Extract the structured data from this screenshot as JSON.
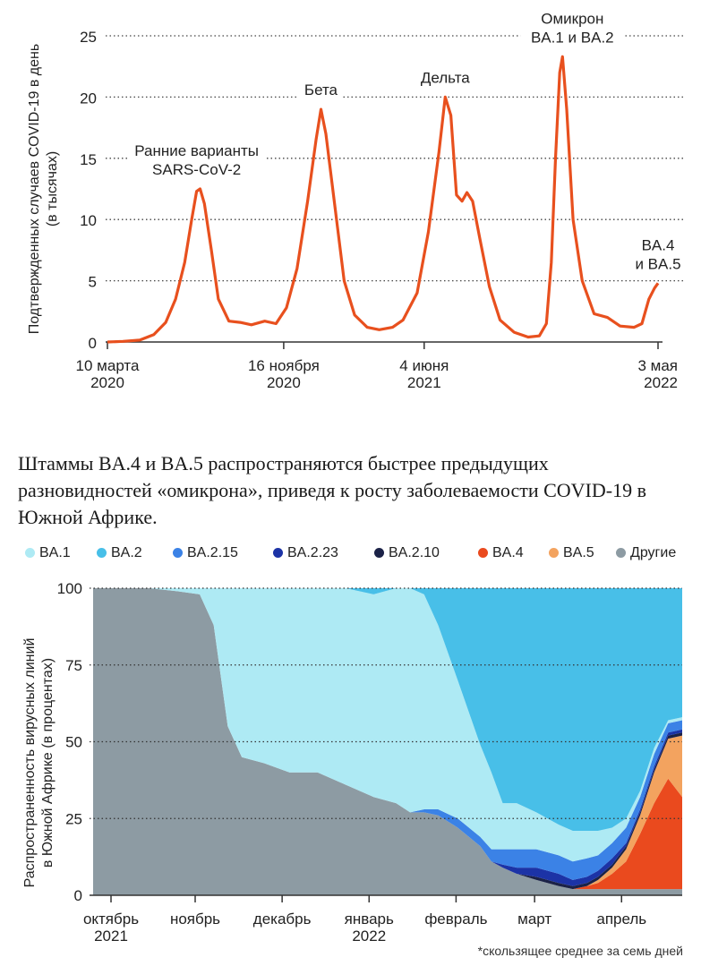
{
  "caption": "Штаммы BA.4 и BA.5 распространяются быстрее предыдущих разновидностей «омикрона», приведя к росту заболеваемости COVID-19 в Южной Африке.",
  "footnote": "*скользящее среднее за семь дней",
  "chart_data": [
    {
      "type": "line",
      "ylabel": "Подтвержденных случаев COVID-19 в день",
      "ylabel2": "(в тысячах)",
      "ylim": [
        0,
        25
      ],
      "yticks": [
        0,
        5,
        10,
        15,
        20,
        25
      ],
      "grid": "dotted-horizontal",
      "color": "#e8501e",
      "xticks": [
        {
          "x": "2020-03-10",
          "line1": "10 марта",
          "line2": "2020"
        },
        {
          "x": "2020-11-16",
          "line1": "16 ноября",
          "line2": "2020"
        },
        {
          "x": "2021-06-04",
          "line1": "4 июня",
          "line2": "2021"
        },
        {
          "x": "2022-05-03",
          "line1": "3 мая",
          "line2": "2022"
        }
      ],
      "annotations": [
        {
          "x": "2020-07-15",
          "y": 12.5,
          "lines": [
            "Ранние варианты",
            "SARS-CoV-2"
          ]
        },
        {
          "x": "2021-01-08",
          "y": 19.0,
          "lines": [
            "Бета"
          ]
        },
        {
          "x": "2021-07-04",
          "y": 20.0,
          "lines": [
            "Дельта"
          ]
        },
        {
          "x": "2022-01-01",
          "y": 23.3,
          "lines": [
            "Омикрон",
            "BA.1 и BA.2"
          ]
        },
        {
          "x": "2022-05-03",
          "y": 4.8,
          "lines": [
            "BA.4",
            "и BA.5"
          ]
        }
      ],
      "series": [
        {
          "values": [
            [
              "2020-03-10",
              0.0
            ],
            [
              "2020-04-01",
              0.05
            ],
            [
              "2020-04-25",
              0.15
            ],
            [
              "2020-05-15",
              0.6
            ],
            [
              "2020-06-01",
              1.6
            ],
            [
              "2020-06-15",
              3.5
            ],
            [
              "2020-06-28",
              6.5
            ],
            [
              "2020-07-08",
              10.0
            ],
            [
              "2020-07-15",
              12.3
            ],
            [
              "2020-07-20",
              12.5
            ],
            [
              "2020-07-26",
              11.3
            ],
            [
              "2020-08-05",
              7.5
            ],
            [
              "2020-08-15",
              3.5
            ],
            [
              "2020-08-30",
              1.7
            ],
            [
              "2020-09-15",
              1.6
            ],
            [
              "2020-10-01",
              1.4
            ],
            [
              "2020-10-20",
              1.7
            ],
            [
              "2020-11-05",
              1.5
            ],
            [
              "2020-11-20",
              2.8
            ],
            [
              "2020-12-05",
              6.0
            ],
            [
              "2020-12-20",
              11.5
            ],
            [
              "2021-01-01",
              16.5
            ],
            [
              "2021-01-08",
              19.0
            ],
            [
              "2021-01-15",
              17.0
            ],
            [
              "2021-01-28",
              11.0
            ],
            [
              "2021-02-10",
              5.0
            ],
            [
              "2021-02-25",
              2.2
            ],
            [
              "2021-03-15",
              1.2
            ],
            [
              "2021-04-01",
              1.0
            ],
            [
              "2021-04-20",
              1.2
            ],
            [
              "2021-05-05",
              1.8
            ],
            [
              "2021-05-25",
              4.0
            ],
            [
              "2021-06-10",
              9.0
            ],
            [
              "2021-06-25",
              15.5
            ],
            [
              "2021-07-04",
              20.0
            ],
            [
              "2021-07-12",
              18.5
            ],
            [
              "2021-07-20",
              12.0
            ],
            [
              "2021-07-28",
              11.5
            ],
            [
              "2021-08-04",
              12.2
            ],
            [
              "2021-08-12",
              11.5
            ],
            [
              "2021-08-22",
              8.5
            ],
            [
              "2021-09-05",
              4.5
            ],
            [
              "2021-09-20",
              1.8
            ],
            [
              "2021-10-10",
              0.8
            ],
            [
              "2021-10-30",
              0.4
            ],
            [
              "2021-11-15",
              0.5
            ],
            [
              "2021-11-25",
              1.5
            ],
            [
              "2021-12-02",
              6.5
            ],
            [
              "2021-12-08",
              15.0
            ],
            [
              "2021-12-14",
              22.0
            ],
            [
              "2021-12-18",
              23.3
            ],
            [
              "2021-12-24",
              19.0
            ],
            [
              "2022-01-02",
              10.0
            ],
            [
              "2022-01-15",
              5.0
            ],
            [
              "2022-02-01",
              2.3
            ],
            [
              "2022-02-20",
              2.0
            ],
            [
              "2022-03-10",
              1.3
            ],
            [
              "2022-03-30",
              1.2
            ],
            [
              "2022-04-10",
              1.5
            ],
            [
              "2022-04-20",
              3.5
            ],
            [
              "2022-04-28",
              4.4
            ],
            [
              "2022-05-03",
              4.8
            ]
          ]
        }
      ]
    },
    {
      "type": "area",
      "stacked": true,
      "ylabel": "Распространенность вирусных линий",
      "ylabel2": "в Южной Африке (в процентах)",
      "ylim": [
        0,
        100
      ],
      "yticks": [
        0,
        25,
        50,
        75,
        100
      ],
      "grid": "dotted-horizontal",
      "xticks": [
        {
          "x": 0,
          "line1": "октябрь",
          "line2": "2021"
        },
        {
          "x": 30,
          "line1": "ноябрь",
          "line2": ""
        },
        {
          "x": 61,
          "line1": "декабрь",
          "line2": ""
        },
        {
          "x": 92,
          "line1": "январь",
          "line2": "2022"
        },
        {
          "x": 123,
          "line1": "февраль",
          "line2": ""
        },
        {
          "x": 151,
          "line1": "март",
          "line2": ""
        },
        {
          "x": 182,
          "line1": "апрель",
          "line2": ""
        }
      ],
      "x": [
        0,
        10,
        20,
        30,
        38,
        43,
        48,
        53,
        61,
        70,
        80,
        90,
        100,
        108,
        113,
        118,
        123,
        130,
        138,
        142,
        146,
        151,
        158,
        166,
        171,
        176,
        180,
        185,
        190,
        195,
        200,
        205,
        210
      ],
      "series": [
        {
          "name": "Другие",
          "color": "#8d9ba3",
          "values": [
            100,
            100,
            100,
            99,
            98,
            88,
            55,
            45,
            43,
            40,
            40,
            36,
            32,
            30,
            27,
            27,
            26,
            22,
            16,
            11,
            9,
            7,
            5,
            3,
            2,
            2,
            2,
            2,
            2,
            2,
            2,
            2,
            2
          ]
        },
        {
          "name": "BA.4",
          "color": "#ea4a1e",
          "values": [
            0,
            0,
            0,
            0,
            0,
            0,
            0,
            0,
            0,
            0,
            0,
            0,
            0,
            0,
            0,
            0,
            0,
            0,
            0,
            0,
            0,
            0,
            0,
            0,
            0,
            1,
            2,
            5,
            9,
            18,
            28,
            36,
            30
          ]
        },
        {
          "name": "BA.5",
          "color": "#f3a35f",
          "values": [
            0,
            0,
            0,
            0,
            0,
            0,
            0,
            0,
            0,
            0,
            0,
            0,
            0,
            0,
            0,
            0,
            0,
            0,
            0,
            0,
            0,
            0,
            0,
            0,
            0,
            0,
            1,
            2,
            4,
            6,
            10,
            13,
            20
          ]
        },
        {
          "name": "BA.2.10",
          "color": "#1b2247",
          "values": [
            0,
            0,
            0,
            0,
            0,
            0,
            0,
            0,
            0,
            0,
            0,
            0,
            0,
            0,
            0,
            0,
            0,
            0,
            0,
            0,
            0,
            0,
            1,
            1,
            1,
            1,
            1,
            1,
            1,
            1,
            1,
            1,
            1
          ]
        },
        {
          "name": "BA.2.23",
          "color": "#1c33a6",
          "values": [
            0,
            0,
            0,
            0,
            0,
            0,
            0,
            0,
            0,
            0,
            0,
            0,
            0,
            0,
            0,
            0,
            0,
            0,
            0,
            0,
            1,
            2,
            3,
            3,
            2,
            2,
            2,
            2,
            1,
            1,
            1,
            1,
            1
          ]
        },
        {
          "name": "BA.2.15",
          "color": "#3b82e6",
          "values": [
            0,
            0,
            0,
            0,
            0,
            0,
            0,
            0,
            0,
            0,
            0,
            0,
            0,
            0,
            0,
            1,
            2,
            3,
            3,
            4,
            5,
            6,
            6,
            6,
            6,
            6,
            5,
            5,
            5,
            4,
            4,
            3,
            3
          ]
        },
        {
          "name": "BA.1",
          "color": "#aeeaf4",
          "values": [
            0,
            0,
            0,
            1,
            2,
            12,
            45,
            55,
            57,
            60,
            60,
            64,
            66,
            70,
            73,
            70,
            60,
            45,
            30,
            25,
            15,
            15,
            12,
            10,
            10,
            9,
            8,
            5,
            3,
            2,
            2,
            1,
            1
          ]
        },
        {
          "name": "BA.2",
          "color": "#48bfe8",
          "values": [
            0,
            0,
            0,
            0,
            0,
            0,
            0,
            0,
            0,
            0,
            0,
            0,
            2,
            0,
            0,
            2,
            12,
            30,
            51,
            60,
            70,
            70,
            73,
            77,
            79,
            79,
            79,
            78,
            75,
            66,
            52,
            43,
            42
          ]
        }
      ]
    }
  ],
  "legend": [
    {
      "name": "BA.1",
      "color": "#aeeaf4"
    },
    {
      "name": "BA.2",
      "color": "#48bfe8"
    },
    {
      "name": "BA.2.15",
      "color": "#3b82e6"
    },
    {
      "name": "BA.2.23",
      "color": "#1c33a6"
    },
    {
      "name": "BA.2.10",
      "color": "#1b2247"
    },
    {
      "name": "BA.4",
      "color": "#ea4a1e"
    },
    {
      "name": "BA.5",
      "color": "#f3a35f"
    },
    {
      "name": "Другие",
      "color": "#8d9ba3"
    }
  ]
}
